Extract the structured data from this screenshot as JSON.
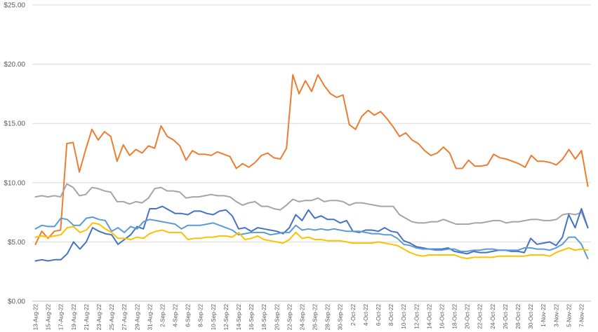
{
  "chart_data": {
    "type": "line",
    "title": "",
    "xlabel": "",
    "ylabel": "",
    "ylim": [
      0,
      25
    ],
    "grid": "horizontal",
    "legend": "none",
    "y_ticks": [
      "$0.00",
      "$5.00",
      "$10.00",
      "$15.00",
      "$20.00",
      "$25.00"
    ],
    "x_tick_labels": [
      "13-Aug-22",
      "15-Aug-22",
      "17-Aug-22",
      "19-Aug-22",
      "21-Aug-22",
      "23-Aug-22",
      "25-Aug-22",
      "27-Aug-22",
      "29-Aug-22",
      "31-Aug-22",
      "2-Sep-22",
      "4-Sep-22",
      "6-Sep-22",
      "8-Sep-22",
      "10-Sep-22",
      "12-Sep-22",
      "14-Sep-22",
      "16-Sep-22",
      "18-Sep-22",
      "20-Sep-22",
      "22-Sep-22",
      "24-Sep-22",
      "26-Sep-22",
      "28-Sep-22",
      "30-Sep-22",
      "2-Oct-22",
      "4-Oct-22",
      "6-Oct-22",
      "8-Oct-22",
      "10-Oct-22",
      "12-Oct-22",
      "14-Oct-22",
      "16-Oct-22",
      "18-Oct-22",
      "20-Oct-22",
      "22-Oct-22",
      "24-Oct-22",
      "26-Oct-22",
      "28-Oct-22",
      "30-Oct-22",
      "1-Nov-22",
      "3-Nov-22",
      "5-Nov-22",
      "7-Nov-22"
    ],
    "x_start": "2022-08-13",
    "x_end": "2022-11-08",
    "series": [
      {
        "color": "#ED7D31",
        "values": [
          4.8,
          5.9,
          5.3,
          5.9,
          6.0,
          13.3,
          13.4,
          10.9,
          12.8,
          14.5,
          13.6,
          14.3,
          13.9,
          11.8,
          13.2,
          12.3,
          12.8,
          12.5,
          13.1,
          12.9,
          14.8,
          13.9,
          13.6,
          13.1,
          11.9,
          12.7,
          12.4,
          12.4,
          12.3,
          12.6,
          12.4,
          12.2,
          11.2,
          11.6,
          11.3,
          11.7,
          12.3,
          12.5,
          12.1,
          12.0,
          12.9,
          19.1,
          17.5,
          18.6,
          17.7,
          19.1,
          18.2,
          17.5,
          17.2,
          17.4,
          14.9,
          14.5,
          15.6,
          16.1,
          15.7,
          16.0,
          15.4,
          14.7,
          13.9,
          14.2,
          13.6,
          13.3,
          12.7,
          12.3,
          12.5,
          13.0,
          12.5,
          11.2,
          11.2,
          11.9,
          11.4,
          11.4,
          11.5,
          12.4,
          12.1,
          12.0,
          11.8,
          11.6,
          11.3,
          12.3,
          11.8,
          11.8,
          11.7,
          11.5,
          12.0,
          12.8,
          12.0,
          12.7,
          9.7
        ]
      },
      {
        "color": "#A5A5A5",
        "values": [
          8.8,
          8.9,
          8.8,
          8.9,
          8.8,
          9.9,
          9.6,
          8.9,
          9.0,
          9.6,
          9.5,
          9.3,
          9.2,
          8.4,
          8.4,
          8.2,
          8.4,
          8.3,
          8.7,
          9.5,
          9.6,
          9.3,
          9.3,
          9.2,
          8.7,
          8.8,
          8.8,
          8.9,
          9.0,
          8.9,
          8.9,
          8.8,
          8.4,
          8.1,
          8.3,
          8.4,
          8.0,
          8.0,
          7.8,
          7.7,
          8.1,
          8.6,
          8.4,
          8.5,
          8.5,
          8.7,
          8.4,
          8.5,
          8.5,
          8.4,
          8.1,
          8.3,
          8.3,
          8.2,
          8.1,
          8.0,
          8.0,
          8.0,
          7.3,
          7.0,
          6.7,
          6.6,
          6.6,
          6.7,
          6.7,
          6.9,
          6.7,
          6.5,
          6.5,
          6.5,
          6.6,
          6.6,
          6.7,
          6.8,
          6.8,
          6.6,
          6.7,
          6.7,
          6.8,
          6.9,
          6.9,
          6.8,
          6.8,
          6.9,
          7.3,
          7.4,
          7.3,
          7.5,
          6.2
        ]
      },
      {
        "color": "#4472C4",
        "values": [
          3.4,
          3.5,
          3.4,
          3.5,
          3.5,
          4.0,
          5.0,
          4.4,
          5.0,
          6.2,
          5.9,
          5.7,
          5.6,
          4.8,
          5.2,
          5.6,
          6.3,
          6.1,
          7.8,
          7.8,
          8.0,
          7.7,
          7.4,
          7.4,
          7.3,
          7.6,
          7.6,
          7.4,
          7.3,
          7.6,
          7.7,
          7.2,
          6.1,
          6.2,
          5.9,
          6.2,
          6.1,
          6.0,
          5.9,
          5.7,
          6.2,
          7.3,
          6.8,
          7.7,
          7.0,
          7.2,
          6.9,
          6.9,
          6.6,
          6.8,
          5.9,
          5.8,
          6.0,
          6.0,
          5.9,
          6.2,
          5.9,
          5.8,
          5.1,
          4.9,
          4.6,
          4.5,
          4.4,
          4.4,
          4.4,
          4.5,
          4.2,
          4.1,
          4.0,
          4.2,
          4.1,
          4.1,
          4.2,
          4.3,
          4.3,
          4.2,
          4.2,
          4.1,
          5.3,
          4.8,
          4.9,
          5.0,
          4.7,
          5.4,
          7.3,
          6.2,
          7.8,
          6.2
        ]
      },
      {
        "color": "#5B9BD5",
        "values": [
          6.1,
          6.4,
          6.3,
          6.3,
          7.0,
          6.9,
          6.4,
          6.4,
          7.0,
          7.1,
          6.9,
          6.8,
          5.9,
          6.2,
          5.8,
          6.3,
          6.1,
          6.7,
          6.9,
          6.8,
          6.7,
          6.6,
          6.5,
          6.1,
          6.4,
          6.4,
          6.4,
          6.5,
          6.6,
          6.4,
          6.2,
          6.0,
          5.6,
          5.7,
          5.8,
          5.8,
          5.8,
          5.6,
          5.7,
          5.8,
          5.8,
          6.4,
          6.0,
          6.1,
          6.0,
          6.1,
          6.0,
          6.1,
          6.0,
          5.9,
          5.9,
          5.9,
          5.8,
          5.7,
          5.7,
          5.6,
          5.6,
          5.3,
          4.8,
          4.7,
          4.5,
          4.4,
          4.4,
          4.3,
          4.3,
          4.4,
          4.4,
          4.2,
          4.2,
          4.3,
          4.3,
          4.4,
          4.4,
          4.3,
          4.3,
          4.3,
          4.3,
          4.5,
          4.5,
          4.4,
          4.4,
          4.3,
          4.5,
          4.8,
          5.4,
          5.4,
          4.8,
          3.6
        ]
      },
      {
        "color": "#FFC000",
        "values": [
          5.4,
          5.5,
          5.4,
          5.5,
          5.6,
          6.2,
          6.3,
          5.8,
          6.0,
          6.6,
          6.5,
          6.1,
          5.8,
          5.3,
          5.3,
          5.2,
          5.4,
          5.3,
          5.7,
          5.9,
          6.0,
          5.8,
          5.8,
          5.8,
          5.2,
          5.3,
          5.3,
          5.4,
          5.4,
          5.5,
          5.5,
          5.4,
          5.8,
          5.2,
          5.3,
          5.5,
          5.2,
          5.1,
          5.0,
          4.9,
          5.2,
          5.8,
          5.3,
          5.4,
          5.2,
          5.2,
          5.1,
          5.1,
          5.1,
          5.0,
          4.9,
          4.9,
          4.9,
          4.9,
          5.0,
          4.9,
          4.8,
          4.7,
          4.4,
          4.1,
          3.9,
          3.8,
          3.9,
          3.9,
          3.9,
          3.9,
          3.9,
          3.7,
          3.6,
          3.7,
          3.7,
          3.7,
          3.7,
          3.8,
          3.8,
          3.8,
          3.8,
          3.8,
          3.9,
          3.9,
          3.9,
          3.8,
          4.1,
          4.3,
          4.5,
          4.3,
          4.4,
          4.3
        ]
      }
    ]
  }
}
